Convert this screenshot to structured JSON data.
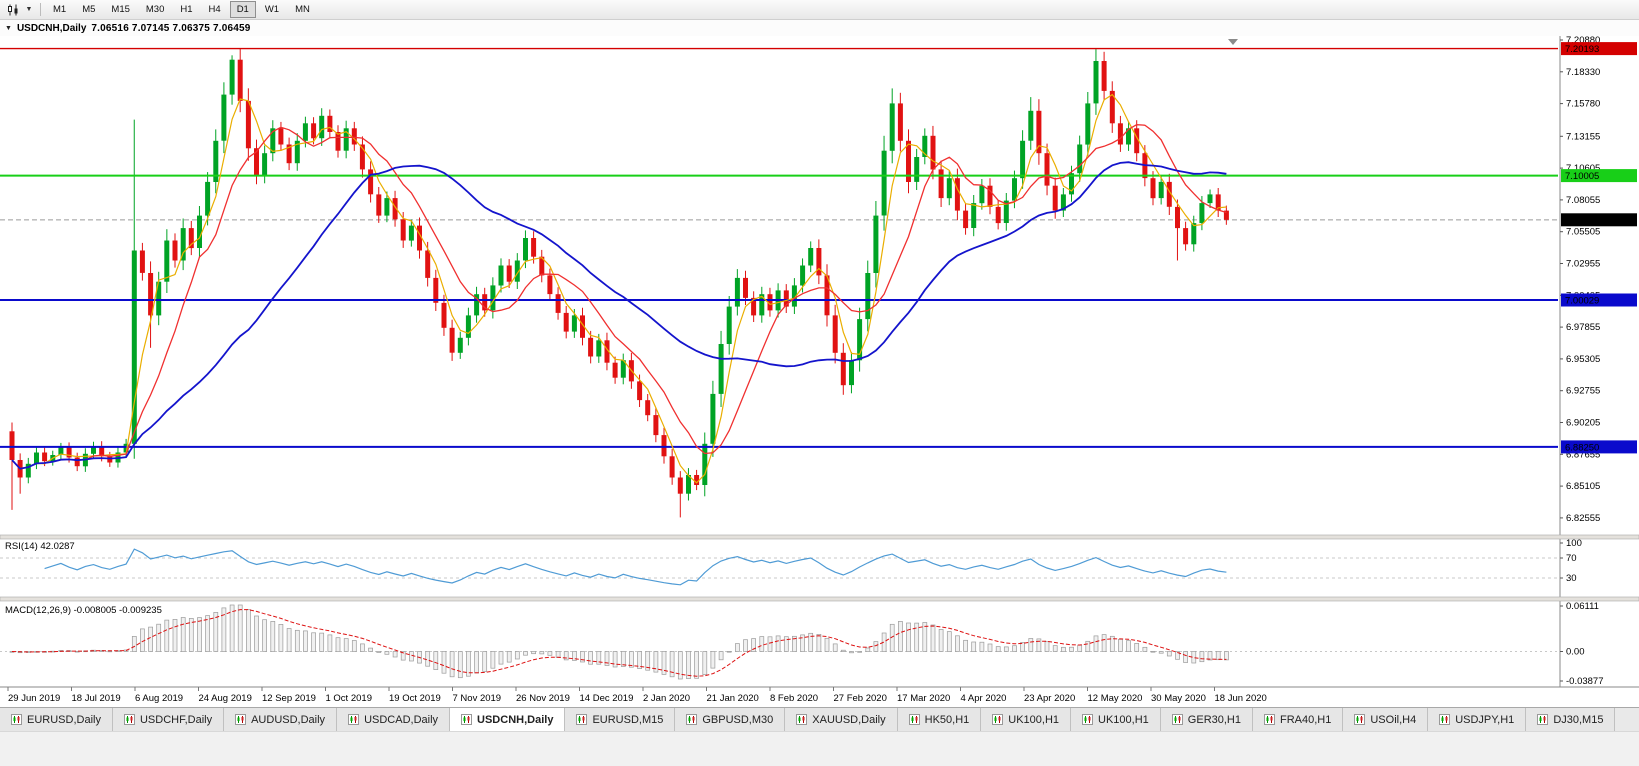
{
  "toolbar": {
    "icons": [
      "candlestick-chart-icon",
      "dropdown-caret-icon"
    ],
    "timeframes": [
      "M1",
      "M5",
      "M15",
      "M30",
      "H1",
      "H4",
      "D1",
      "W1",
      "MN"
    ],
    "active_timeframe": "D1"
  },
  "chart": {
    "title": "USDCNH,Daily",
    "ohlc": "7.06516 7.07145 7.06375 7.06459"
  },
  "chart_data": {
    "type": "candlestick",
    "symbol": "USDCNH",
    "timeframe": "Daily",
    "quote": {
      "open": "7.06516",
      "high": "7.07145",
      "low": "7.06375",
      "close": "7.06459"
    },
    "price_axis": {
      "min": 6.8255,
      "max": 7.2088,
      "ticks": [
        "7.20880",
        "7.18330",
        "7.15780",
        "7.13155",
        "7.10605",
        "7.08055",
        "7.05505",
        "7.02955",
        "7.00405",
        "6.97855",
        "6.95305",
        "6.92755",
        "6.90205",
        "6.87655",
        "6.85105",
        "6.82555"
      ]
    },
    "x_labels": [
      "29 Jun 2019",
      "18 Jul 2019",
      "6 Aug 2019",
      "24 Aug 2019",
      "12 Sep 2019",
      "1 Oct 2019",
      "19 Oct 2019",
      "7 Nov 2019",
      "26 Nov 2019",
      "14 Dec 2019",
      "2 Jan 2020",
      "21 Jan 2020",
      "8 Feb 2020",
      "27 Feb 2020",
      "17 Mar 2020",
      "4 Apr 2020",
      "23 Apr 2020",
      "12 May 2020",
      "30 May 2020",
      "18 Jun 2020"
    ],
    "open_first": 6.895,
    "closes": [
      6.872,
      6.858,
      6.869,
      6.878,
      6.871,
      6.876,
      6.882,
      6.874,
      6.867,
      6.877,
      6.883,
      6.875,
      6.87,
      6.878,
      6.885,
      7.04,
      7.022,
      6.988,
      7.015,
      7.048,
      7.032,
      7.058,
      7.042,
      7.068,
      7.095,
      7.128,
      7.165,
      7.193,
      7.16,
      7.122,
      7.1,
      7.118,
      7.138,
      7.125,
      7.11,
      7.128,
      7.142,
      7.13,
      7.148,
      7.135,
      7.12,
      7.138,
      7.125,
      7.105,
      7.085,
      7.068,
      7.082,
      7.065,
      7.048,
      7.06,
      7.04,
      7.018,
      6.998,
      6.978,
      6.958,
      6.97,
      6.988,
      7.005,
      6.992,
      7.012,
      7.028,
      7.015,
      7.032,
      7.05,
      7.035,
      7.02,
      7.005,
      6.99,
      6.975,
      6.988,
      6.97,
      6.955,
      6.968,
      6.95,
      6.938,
      6.952,
      6.935,
      6.92,
      6.908,
      6.892,
      6.875,
      6.858,
      6.845,
      6.86,
      6.852,
      6.885,
      6.925,
      6.965,
      6.995,
      7.018,
      7.002,
      6.988,
      7.005,
      6.992,
      7.008,
      6.995,
      7.012,
      7.028,
      7.042,
      7.02,
      6.988,
      6.958,
      6.932,
      6.952,
      6.985,
      7.022,
      7.068,
      7.12,
      7.158,
      7.128,
      7.095,
      7.115,
      7.132,
      7.105,
      7.082,
      7.098,
      7.072,
      7.058,
      7.078,
      7.092,
      7.075,
      7.062,
      7.08,
      7.098,
      7.128,
      7.152,
      7.118,
      7.092,
      7.072,
      7.085,
      7.102,
      7.125,
      7.158,
      7.192,
      7.168,
      7.142,
      7.125,
      7.138,
      7.118,
      7.098,
      7.082,
      7.095,
      7.075,
      7.058,
      7.045,
      7.062,
      7.078,
      7.085,
      7.072,
      7.0646
    ],
    "wick_overrides": {
      "0": {
        "l": 6.832
      },
      "1": {
        "l": 6.845
      },
      "15": {
        "h": 7.145
      },
      "17": {
        "l": 6.962
      },
      "27": {
        "h": 7.1965
      },
      "82": {
        "l": 6.826
      },
      "108": {
        "h": 7.17
      },
      "125": {
        "h": 7.163
      },
      "133": {
        "h": 7.2015
      },
      "143": {
        "l": 7.032
      }
    },
    "colors": {
      "up": "#00a325",
      "down": "#e11212",
      "ma_fast": "#eaae00",
      "ma_mid": "#f03030",
      "ma_slow": "#1414cc",
      "rsi": "#4f9bd5",
      "macd_signal": "#dd1111",
      "macd_bar": "#9a9a9a"
    },
    "moving_averages": [
      {
        "window": 4,
        "color_key": "ma_fast",
        "width": 1.2
      },
      {
        "window": 9,
        "color_key": "ma_mid",
        "width": 1.3
      },
      {
        "window": 30,
        "color_key": "ma_slow",
        "width": 1.8
      }
    ],
    "hlines": [
      {
        "value": 7.20193,
        "label": "7.20193",
        "color": "#d40000",
        "width": 1.4,
        "text": "#ffffff"
      },
      {
        "value": 7.10005,
        "label": "7.10005",
        "color": "#18cf18",
        "width": 2,
        "text": "#000000"
      },
      {
        "value": 7.00029,
        "label": "7.00029",
        "color": "#0a0acc",
        "width": 2,
        "text": "#ffffff"
      },
      {
        "value": 6.8825,
        "label": "6.88250",
        "color": "#0a0acc",
        "width": 2,
        "text": "#ffffff"
      }
    ],
    "current_price": {
      "value": 7.06459,
      "label": "7.06459"
    },
    "rsi": {
      "name": "RSI(14)",
      "value": "42.0287",
      "levels": [
        100,
        70,
        30
      ]
    },
    "macd": {
      "name": "MACD(12,26,9)",
      "values": "-0.008005 -0.009235",
      "axis_max": 0.06111,
      "axis_min": -0.03877,
      "axis_labels": [
        "0.06111",
        "0.00",
        "-0.03877"
      ]
    }
  },
  "tabs": {
    "active": "USDCNH,Daily",
    "items": [
      "EURUSD,Daily",
      "USDCHF,Daily",
      "AUDUSD,Daily",
      "USDCAD,Daily",
      "USDCNH,Daily",
      "EURUSD,M15",
      "GBPUSD,M30",
      "XAUUSD,Daily",
      "HK50,H1",
      "UK100,H1",
      "UK100,H1",
      "GER30,H1",
      "FRA40,H1",
      "USOil,H4",
      "USDJPY,H1",
      "DJ30,M15"
    ]
  }
}
